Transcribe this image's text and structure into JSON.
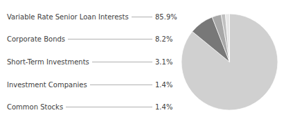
{
  "chart_data": {
    "type": "pie",
    "categories": [
      "Variable Rate Senior Loan Interests",
      "Corporate Bonds",
      "Short-Term Investments",
      "Investment Companies",
      "Common Stocks"
    ],
    "values": [
      85.9,
      8.2,
      3.1,
      1.4,
      1.4
    ],
    "value_labels": [
      "85.9%",
      "8.2%",
      "3.1%",
      "1.4%",
      "1.4%"
    ],
    "colors": [
      "#d0d0d0",
      "#787878",
      "#a8a8a8",
      "#c0c0c0",
      "#e8e8e8"
    ],
    "data_labels": true
  }
}
